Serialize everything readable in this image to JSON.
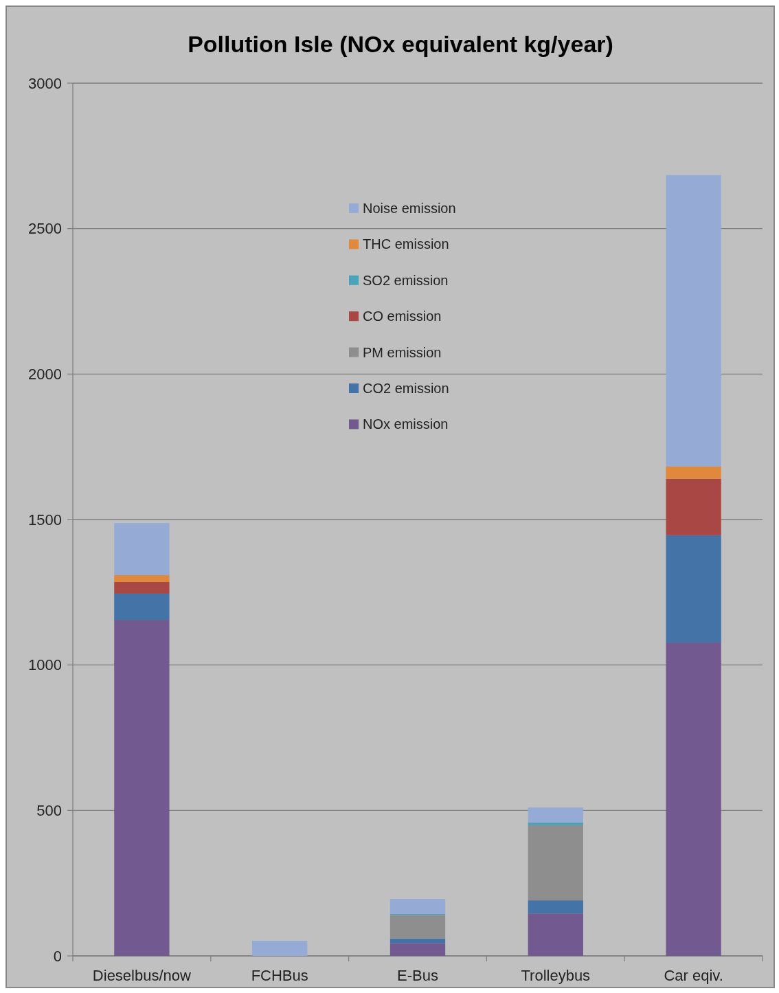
{
  "chart_data": {
    "type": "bar",
    "title": "Pollution Isle (NOx equivalent kg/year)",
    "stacked": true,
    "categories": [
      "Dieselbus/now",
      "FCHBus",
      "E-Bus",
      "Trolleybus",
      "Car eqiv."
    ],
    "series": [
      {
        "name": "NOx emission",
        "color": "#72598f",
        "values": [
          1155,
          0,
          44,
          146,
          1077
        ]
      },
      {
        "name": "CO2 emission",
        "color": "#4473a8",
        "values": [
          90,
          0,
          16,
          45,
          369
        ]
      },
      {
        "name": "PM emission",
        "color": "#8e8e8e",
        "values": [
          0,
          0,
          81,
          258,
          0
        ]
      },
      {
        "name": "CO emission",
        "color": "#a94744",
        "values": [
          40,
          0,
          0,
          0,
          194
        ]
      },
      {
        "name": "SO2 emission",
        "color": "#4aa3b8",
        "values": [
          0,
          0,
          3,
          9,
          0
        ]
      },
      {
        "name": "THC emission",
        "color": "#e0883c",
        "values": [
          24,
          0,
          0,
          0,
          42
        ]
      },
      {
        "name": "Noise emission",
        "color": "#95abd5",
        "values": [
          179,
          52,
          52,
          52,
          1002
        ]
      }
    ],
    "ylim": [
      0,
      3000
    ],
    "yticks": [
      0,
      500,
      1000,
      1500,
      2000,
      2500,
      3000
    ],
    "grid": "y",
    "legend": "top"
  }
}
